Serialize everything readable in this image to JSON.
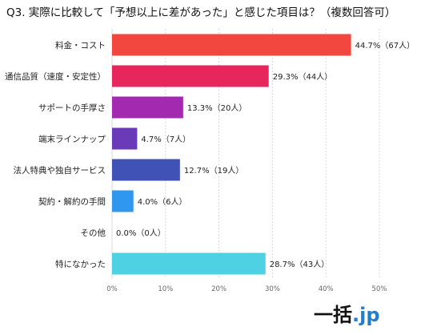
{
  "chart_data": {
    "type": "bar",
    "orientation": "horizontal",
    "title": "Q3. 実際に比較して「予想以上に差があった」と感じた項目は？（複数回答可）",
    "categories": [
      "料金・コスト",
      "通信品質（速度・安定性）",
      "サポートの手厚さ",
      "端末ラインナップ",
      "法人特典や独自サービス",
      "契約・解約の手間",
      "その他",
      "特になかった"
    ],
    "values": [
      44.7,
      29.3,
      13.3,
      4.7,
      12.7,
      4.0,
      0.0,
      28.7
    ],
    "value_labels": [
      "44.7%（67人）",
      "29.3%（44人）",
      "13.3%（20人）",
      "4.7%（7人）",
      "12.7%（19人）",
      "4.0%（6人）",
      "0.0%（0人）",
      "28.7%（43人）"
    ],
    "colors": [
      "#f2473f",
      "#e8265e",
      "#a229b0",
      "#6a3bb8",
      "#4052b5",
      "#2f97ee",
      "#11a8f0",
      "#4fd1e4"
    ],
    "xlim": [
      0,
      50
    ],
    "ticks": [
      0,
      10,
      20,
      30,
      40,
      50
    ],
    "tick_labels": [
      "0%",
      "10%",
      "20%",
      "30%",
      "40%",
      "50%"
    ],
    "grid": true,
    "xlabel": "",
    "ylabel": ""
  },
  "logo": {
    "kanji": "一括",
    "dot_jp": ".jp"
  }
}
